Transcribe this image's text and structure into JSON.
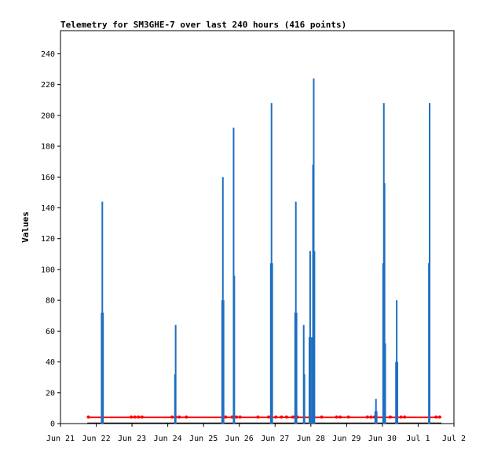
{
  "chart_data": {
    "type": "bar",
    "title": "Telemetry for SM3GHE-7 over last 240 hours (416 points)",
    "xlabel": "",
    "ylabel": "Values",
    "ylim": [
      0,
      255
    ],
    "yticks": [
      0,
      20,
      40,
      60,
      80,
      100,
      120,
      140,
      160,
      180,
      200,
      220,
      240
    ],
    "x_start": "Jun 21",
    "x_end": "Jul 2",
    "xticks": [
      "Jun 21",
      "Jun 22",
      "Jun 23",
      "Jun 24",
      "Jun 25",
      "Jun 26",
      "Jun 27",
      "Jun 28",
      "Jun 29",
      "Jun 30",
      "Jul 1",
      "Jul 2"
    ],
    "grid": false,
    "legend": "none",
    "colors": {
      "bars": "#1f6fc0",
      "series": "#ff0000",
      "baseline": "#000000"
    },
    "series": [
      {
        "style": "bars",
        "color": "#1f6fc0",
        "points": [
          [
            1.15,
            72
          ],
          [
            1.17,
            144
          ],
          [
            1.19,
            72
          ],
          [
            3.2,
            32
          ],
          [
            3.22,
            64
          ],
          [
            4.52,
            80
          ],
          [
            4.54,
            160
          ],
          [
            4.56,
            80
          ],
          [
            4.84,
            192
          ],
          [
            4.86,
            96
          ],
          [
            5.88,
            104
          ],
          [
            5.9,
            208
          ],
          [
            5.92,
            104
          ],
          [
            6.56,
            72
          ],
          [
            6.58,
            144
          ],
          [
            6.6,
            72
          ],
          [
            6.8,
            64
          ],
          [
            6.82,
            32
          ],
          [
            6.96,
            56
          ],
          [
            6.98,
            112
          ],
          [
            7.0,
            56
          ],
          [
            7.04,
            56
          ],
          [
            7.06,
            168
          ],
          [
            7.08,
            224
          ],
          [
            7.1,
            112
          ],
          [
            8.8,
            8
          ],
          [
            8.82,
            16
          ],
          [
            8.84,
            8
          ],
          [
            9.02,
            104
          ],
          [
            9.04,
            208
          ],
          [
            9.06,
            156
          ],
          [
            9.08,
            52
          ],
          [
            9.38,
            40
          ],
          [
            9.4,
            80
          ],
          [
            9.42,
            40
          ],
          [
            10.3,
            104
          ],
          [
            10.32,
            208
          ]
        ]
      },
      {
        "style": "line",
        "color": "#ff0000",
        "x_range": [
          0.75,
          10.65
        ],
        "baseline": 4,
        "markers": [
          0.78,
          1.98,
          2.08,
          2.18,
          2.28,
          3.12,
          3.22,
          3.32,
          3.52,
          4.62,
          4.8,
          4.92,
          5.02,
          5.52,
          5.82,
          6.02,
          6.18,
          6.32,
          6.5,
          6.62,
          7.3,
          7.72,
          7.82,
          8.05,
          8.58,
          8.68,
          8.78,
          9.22,
          9.52,
          9.62,
          10.5,
          10.6
        ]
      }
    ]
  }
}
